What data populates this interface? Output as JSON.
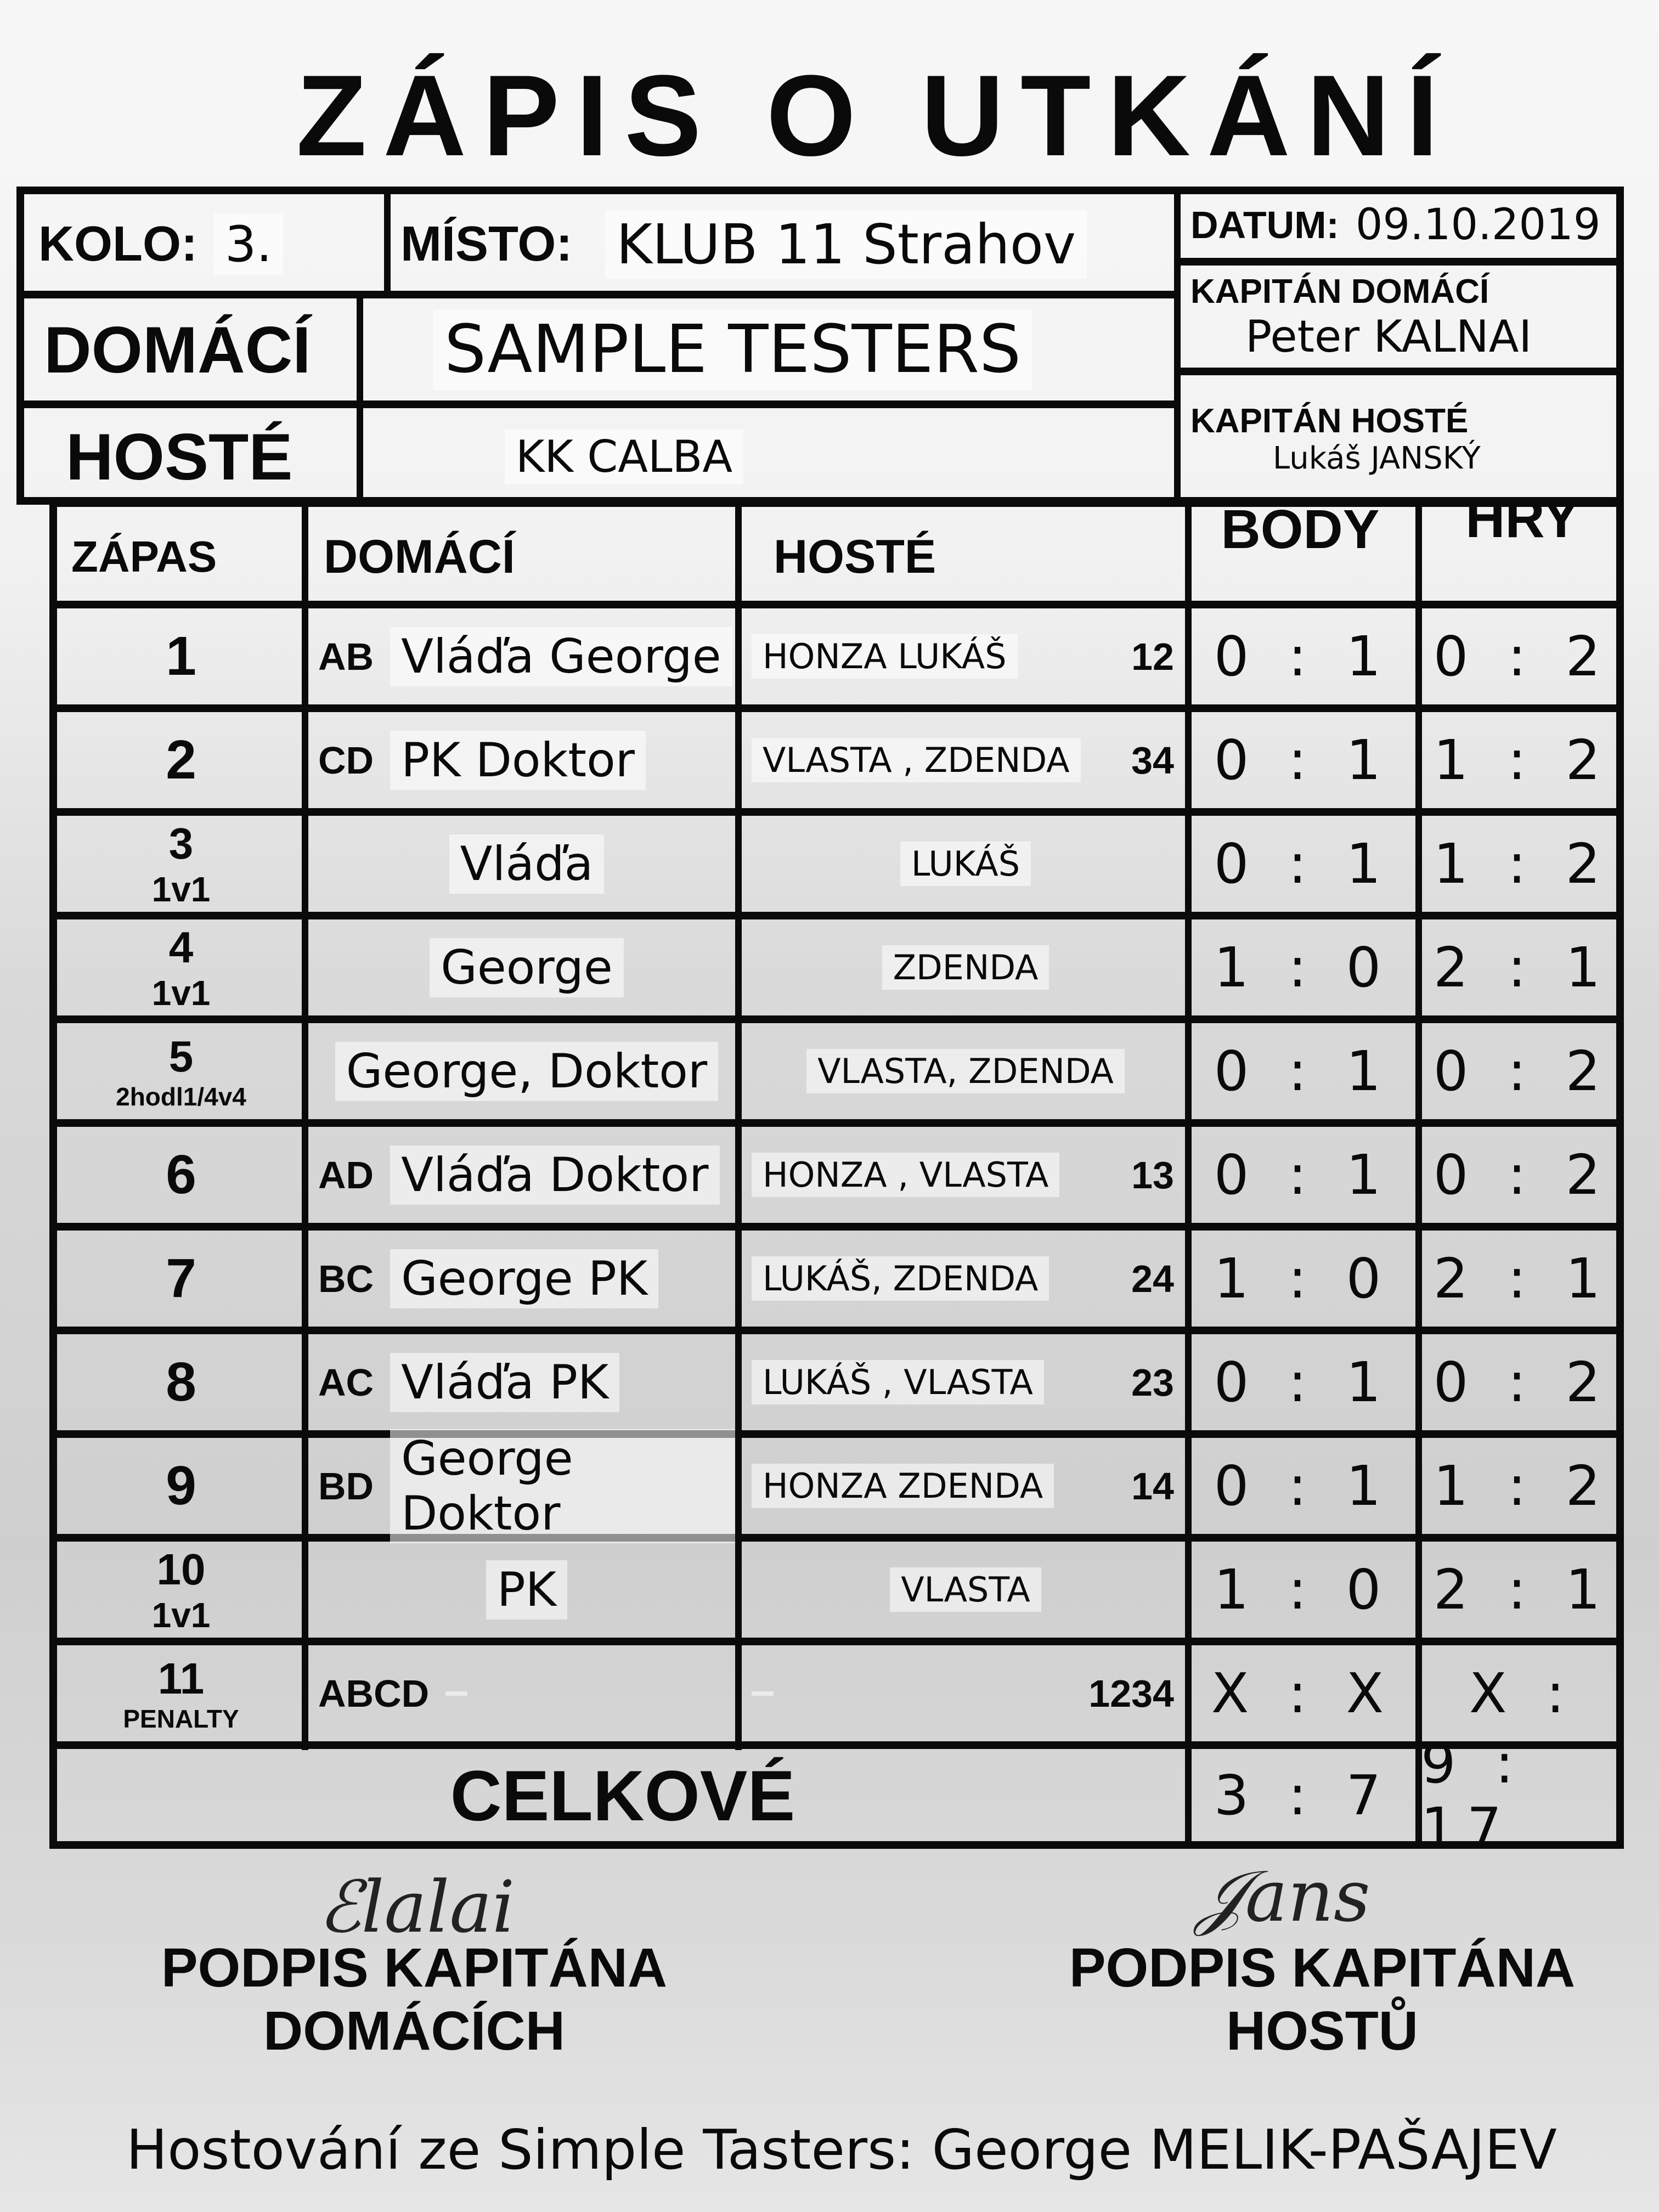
{
  "title": "ZÁPIS O UTKÁNÍ",
  "header": {
    "kolo_label": "KOLO:",
    "kolo_value": "3.",
    "misto_label": "MÍSTO:",
    "misto_value": "KLUB 11 Strahov",
    "datum_label": "DATUM:",
    "datum_value": "09.10.2019",
    "domaci_label": "DOMÁCÍ",
    "domaci_value": "SAMPLE TESTERS",
    "hoste_label": "HOSTÉ",
    "hoste_value": "KK CALBA",
    "kapitan_domaci_label": "KAPITÁN DOMÁCÍ",
    "kapitan_domaci_value": "Peter KALNAI",
    "kapitan_hoste_label": "KAPITÁN HOSTÉ",
    "kapitan_hoste_value": "Lukáš JANSKÝ"
  },
  "columns": {
    "zapas": "ZÁPAS",
    "domaci": "DOMÁCÍ",
    "hoste": "HOSTÉ",
    "body": "BODY",
    "hry": "HRY"
  },
  "matches": [
    {
      "num": "1",
      "sub": "",
      "home_code": "AB",
      "home": "Vláďa  George",
      "away": "HONZA  LUKÁŠ",
      "away_code": "12",
      "body": "0 : 1",
      "hry": "0 : 2"
    },
    {
      "num": "2",
      "sub": "",
      "home_code": "CD",
      "home": "PK  Doktor",
      "away": "VLASTA , ZDENDA",
      "away_code": "34",
      "body": "0 : 1",
      "hry": "1 : 2"
    },
    {
      "num": "3",
      "sub": "1v1",
      "home_code": "",
      "home": "Vláďa",
      "away": "LUKÁŠ",
      "away_code": "",
      "body": "0 : 1",
      "hry": "1 : 2"
    },
    {
      "num": "4",
      "sub": "1v1",
      "home_code": "",
      "home": "George",
      "away": "ZDENDA",
      "away_code": "",
      "body": "1 : 0",
      "hry": "2 : 1"
    },
    {
      "num": "5",
      "sub": "2hodl1/4v4",
      "home_code": "",
      "home": "George, Doktor",
      "away": "VLASTA, ZDENDA",
      "away_code": "",
      "body": "0 : 1",
      "hry": "0 : 2"
    },
    {
      "num": "6",
      "sub": "",
      "home_code": "AD",
      "home": "Vláďa  Doktor",
      "away": "HONZA , VLASTA",
      "away_code": "13",
      "body": "0 : 1",
      "hry": "0 : 2"
    },
    {
      "num": "7",
      "sub": "",
      "home_code": "BC",
      "home": "George  PK",
      "away": "LUKÁŠ, ZDENDA",
      "away_code": "24",
      "body": "1 : 0",
      "hry": "2 : 1"
    },
    {
      "num": "8",
      "sub": "",
      "home_code": "AC",
      "home": "Vláďa  PK",
      "away": "LUKÁŠ , VLASTA",
      "away_code": "23",
      "body": "0 : 1",
      "hry": "0 : 2"
    },
    {
      "num": "9",
      "sub": "",
      "home_code": "BD",
      "home": "George  Doktor",
      "away": "HONZA  ZDENDA",
      "away_code": "14",
      "body": "0 : 1",
      "hry": "1 : 2"
    },
    {
      "num": "10",
      "sub": "1v1",
      "home_code": "",
      "home": "PK",
      "away": "VLASTA",
      "away_code": "",
      "body": "1 : 0",
      "hry": "2 : 1"
    },
    {
      "num": "11",
      "sub": "PENALTY",
      "home_code": "ABCD",
      "home": "",
      "away": "",
      "away_code": "1234",
      "body": "X : X",
      "hry": "X :"
    }
  ],
  "totals": {
    "label": "CELKOVÉ",
    "body": "3 : 7",
    "hry": "9 : 17"
  },
  "signatures": {
    "home_label": "PODPIS KAPITÁNA DOMÁCÍCH",
    "away_label": "PODPIS KAPITÁNA HOSTŮ"
  },
  "note": "Hostování ze Simple Tasters: George MELIK-PAŠAJEV"
}
